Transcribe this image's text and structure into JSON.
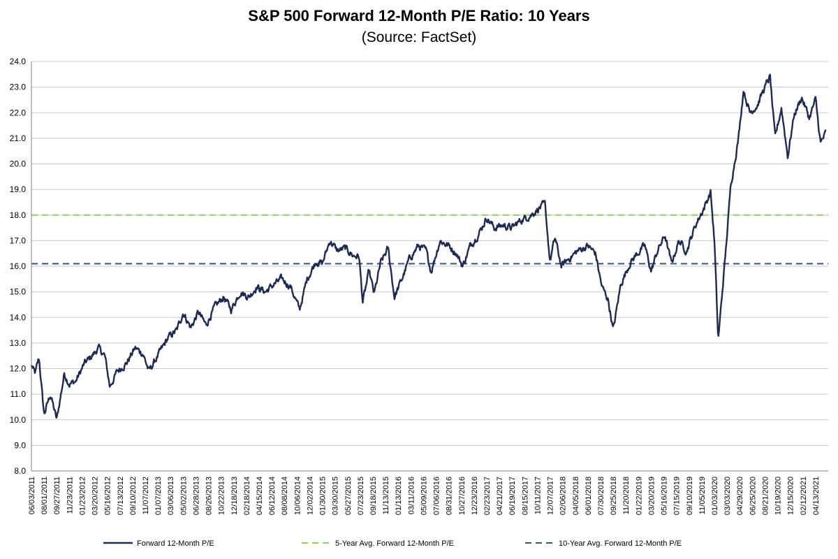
{
  "chart_data": {
    "type": "line",
    "title": "S&P 500 Forward 12-Month P/E Ratio: 10 Years",
    "subtitle": "(Source: FactSet)",
    "xlabel": "",
    "ylabel": "",
    "ylim": [
      8.0,
      24.0
    ],
    "yticks": [
      "8.0",
      "9.0",
      "10.0",
      "11.0",
      "12.0",
      "13.0",
      "14.0",
      "15.0",
      "16.0",
      "17.0",
      "18.0",
      "19.0",
      "20.0",
      "21.0",
      "22.0",
      "23.0",
      "24.0"
    ],
    "xticks": [
      "06/03/2011",
      "08/01/2011",
      "09/27/2011",
      "11/23/2011",
      "01/23/2012",
      "03/20/2012",
      "05/16/2012",
      "07/13/2012",
      "09/10/2012",
      "11/07/2012",
      "01/07/2013",
      "03/06/2013",
      "05/02/2013",
      "06/28/2013",
      "08/26/2013",
      "10/22/2013",
      "12/18/2013",
      "02/18/2014",
      "04/15/2014",
      "06/12/2014",
      "08/08/2014",
      "10/06/2014",
      "12/02/2014",
      "01/30/2015",
      "03/30/2015",
      "05/27/2015",
      "07/23/2015",
      "09/18/2015",
      "11/13/2015",
      "01/13/2016",
      "03/11/2016",
      "05/09/2016",
      "07/06/2016",
      "08/31/2016",
      "10/27/2016",
      "12/23/2016",
      "02/23/2017",
      "04/21/2017",
      "06/19/2017",
      "08/15/2017",
      "10/11/2017",
      "12/07/2017",
      "02/06/2018",
      "04/05/2018",
      "06/01/2018",
      "07/30/2018",
      "09/25/2018",
      "11/20/2018",
      "01/22/2019",
      "03/20/2019",
      "05/16/2019",
      "07/15/2019",
      "09/10/2019",
      "11/05/2019",
      "01/03/2020",
      "03/03/2020",
      "04/29/2020",
      "06/25/2020",
      "08/21/2020",
      "10/19/2020",
      "12/15/2020",
      "02/12/2021",
      "04/13/2021"
    ],
    "grid": true,
    "legend": "bottom",
    "series": [
      {
        "name": "Forward 12-Month P/E",
        "color": "#1b2a57",
        "style": "solid",
        "x_start": 0,
        "x_end": 62.8,
        "anchors": [
          [
            0,
            12.1
          ],
          [
            0.3,
            11.8
          ],
          [
            0.6,
            12.4
          ],
          [
            1.0,
            10.2
          ],
          [
            1.5,
            11.0
          ],
          [
            2.0,
            10.0
          ],
          [
            2.6,
            11.8
          ],
          [
            3.0,
            11.4
          ],
          [
            3.5,
            11.5
          ],
          [
            4.2,
            12.2
          ],
          [
            4.8,
            12.5
          ],
          [
            5.3,
            12.8
          ],
          [
            5.8,
            12.5
          ],
          [
            6.2,
            11.3
          ],
          [
            6.8,
            11.9
          ],
          [
            7.5,
            12.2
          ],
          [
            8.2,
            12.8
          ],
          [
            8.8,
            12.6
          ],
          [
            9.3,
            11.9
          ],
          [
            10.0,
            12.5
          ],
          [
            10.8,
            13.2
          ],
          [
            11.5,
            13.5
          ],
          [
            12.0,
            14.2
          ],
          [
            12.6,
            13.6
          ],
          [
            13.2,
            14.2
          ],
          [
            13.8,
            13.7
          ],
          [
            14.5,
            14.4
          ],
          [
            15.2,
            14.8
          ],
          [
            15.8,
            14.3
          ],
          [
            16.5,
            15.0
          ],
          [
            17.2,
            14.8
          ],
          [
            17.8,
            15.2
          ],
          [
            18.5,
            15.0
          ],
          [
            19.2,
            15.3
          ],
          [
            19.8,
            15.5
          ],
          [
            20.5,
            15.2
          ],
          [
            21.2,
            14.3
          ],
          [
            21.8,
            15.5
          ],
          [
            22.5,
            16.2
          ],
          [
            23.0,
            16.1
          ],
          [
            23.6,
            17.0
          ],
          [
            24.2,
            16.6
          ],
          [
            24.8,
            16.7
          ],
          [
            25.5,
            16.4
          ],
          [
            25.9,
            16.4
          ],
          [
            26.2,
            14.6
          ],
          [
            26.7,
            15.8
          ],
          [
            27.1,
            14.9
          ],
          [
            27.6,
            16.1
          ],
          [
            28.2,
            16.7
          ],
          [
            28.7,
            14.8
          ],
          [
            29.3,
            15.5
          ],
          [
            29.9,
            16.3
          ],
          [
            30.6,
            16.8
          ],
          [
            31.2,
            16.6
          ],
          [
            31.6,
            15.8
          ],
          [
            32.3,
            17.0
          ],
          [
            33.0,
            16.8
          ],
          [
            33.6,
            16.5
          ],
          [
            34.1,
            16.0
          ],
          [
            34.7,
            16.8
          ],
          [
            35.4,
            17.3
          ],
          [
            36.0,
            17.9
          ],
          [
            36.6,
            17.5
          ],
          [
            37.3,
            17.6
          ],
          [
            38.0,
            17.5
          ],
          [
            38.7,
            17.8
          ],
          [
            39.5,
            18.0
          ],
          [
            40.2,
            18.3
          ],
          [
            40.6,
            18.4
          ],
          [
            41.0,
            16.2
          ],
          [
            41.4,
            17.1
          ],
          [
            41.9,
            16.0
          ],
          [
            42.5,
            16.3
          ],
          [
            43.2,
            16.6
          ],
          [
            44.0,
            16.8
          ],
          [
            44.6,
            16.5
          ],
          [
            45.1,
            15.2
          ],
          [
            45.6,
            14.7
          ],
          [
            46.0,
            13.5
          ],
          [
            46.6,
            15.3
          ],
          [
            47.3,
            16.1
          ],
          [
            47.9,
            16.5
          ],
          [
            48.5,
            16.8
          ],
          [
            49.0,
            15.8
          ],
          [
            49.5,
            16.6
          ],
          [
            50.1,
            17.2
          ],
          [
            50.6,
            16.1
          ],
          [
            51.2,
            17.0
          ],
          [
            51.8,
            16.6
          ],
          [
            52.5,
            17.6
          ],
          [
            53.2,
            18.3
          ],
          [
            53.7,
            18.9
          ],
          [
            54.0,
            17.0
          ],
          [
            54.3,
            13.1
          ],
          [
            54.9,
            16.6
          ],
          [
            55.3,
            19.2
          ],
          [
            55.9,
            21.0
          ],
          [
            56.3,
            22.9
          ],
          [
            56.8,
            22.0
          ],
          [
            57.4,
            22.3
          ],
          [
            57.9,
            22.9
          ],
          [
            58.4,
            23.4
          ],
          [
            58.8,
            21.0
          ],
          [
            59.3,
            22.2
          ],
          [
            59.8,
            20.3
          ],
          [
            60.3,
            21.9
          ],
          [
            60.9,
            22.6
          ],
          [
            61.5,
            21.8
          ],
          [
            62.0,
            22.5
          ],
          [
            62.4,
            20.8
          ],
          [
            62.8,
            21.2
          ]
        ]
      },
      {
        "name": "5-Year Avg. Forward 12-Month P/E",
        "color": "#92d050",
        "style": "dashed",
        "value": 18.0
      },
      {
        "name": "10-Year Avg. Forward 12-Month P/E",
        "color": "#2e5597",
        "style": "dashed",
        "value": 16.1
      }
    ]
  }
}
